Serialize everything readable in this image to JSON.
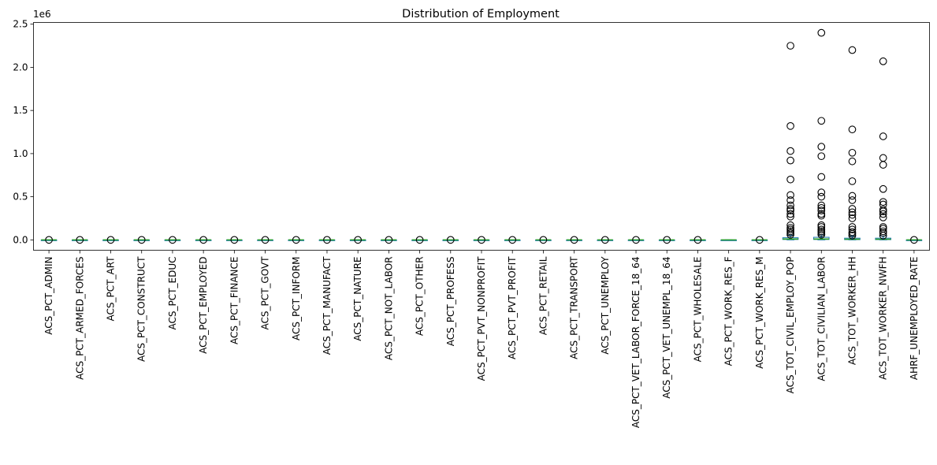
{
  "chart_data": {
    "type": "box",
    "title": "Distribution of Employment",
    "xlabel": "",
    "ylabel": "",
    "y_offset_label": "1e6",
    "y_scale_factor": 1000000,
    "ylim": [
      -0.12,
      2.52
    ],
    "yticks": [
      0.0,
      0.5,
      1.0,
      1.5,
      2.0,
      2.5
    ],
    "ytick_labels": [
      "0.0",
      "0.5",
      "1.0",
      "1.5",
      "2.0",
      "2.5"
    ],
    "grid": false,
    "colors": {
      "box": "#1f77b4",
      "median": "#2ca02c",
      "outlier": "#000000"
    },
    "categories": [
      "ACS_PCT_ADMIN",
      "ACS_PCT_ARMED_FORCES",
      "ACS_PCT_ART",
      "ACS_PCT_CONSTRUCT",
      "ACS_PCT_EDUC",
      "ACS_PCT_EMPLOYED",
      "ACS_PCT_FINANCE",
      "ACS_PCT_GOVT",
      "ACS_PCT_INFORM",
      "ACS_PCT_MANUFACT",
      "ACS_PCT_NATURE",
      "ACS_PCT_NOT_LABOR",
      "ACS_PCT_OTHER",
      "ACS_PCT_PROFESS",
      "ACS_PCT_PVT_NONPROFIT",
      "ACS_PCT_PVT_PROFIT",
      "ACS_PCT_RETAIL",
      "ACS_PCT_TRANSPORT",
      "ACS_PCT_UNEMPLOY",
      "ACS_PCT_VET_LABOR_FORCE_18_64",
      "ACS_PCT_VET_UNEMPL_18_64",
      "ACS_PCT_WHOLESALE",
      "ACS_PCT_WORK_RES_F",
      "ACS_PCT_WORK_RES_M",
      "ACS_TOT_CIVIL_EMPLOY_POP",
      "ACS_TOT_CIVILIAN_LABOR",
      "ACS_TOT_WORKER_HH",
      "ACS_TOT_WORKER_NWFH"
    ],
    "series": [
      {
        "q1": 0,
        "median": 0,
        "q3": 0,
        "whislo": 0,
        "whishi": 0,
        "fliers": [
          0
        ]
      },
      {
        "q1": 0,
        "median": 0,
        "q3": 0,
        "whislo": 0,
        "whishi": 0,
        "fliers": [
          0
        ]
      },
      {
        "q1": 0,
        "median": 0,
        "q3": 0,
        "whislo": 0,
        "whishi": 0,
        "fliers": [
          0
        ]
      },
      {
        "q1": 0,
        "median": 0,
        "q3": 0,
        "whislo": 0,
        "whishi": 0,
        "fliers": [
          0
        ]
      },
      {
        "q1": 0,
        "median": 0,
        "q3": 0,
        "whislo": 0,
        "whishi": 0,
        "fliers": [
          0
        ]
      },
      {
        "q1": 0,
        "median": 0,
        "q3": 0,
        "whislo": 0,
        "whishi": 0,
        "fliers": [
          0
        ]
      },
      {
        "q1": 0,
        "median": 0,
        "q3": 0,
        "whislo": 0,
        "whishi": 0,
        "fliers": [
          0
        ]
      },
      {
        "q1": 0,
        "median": 0,
        "q3": 0,
        "whislo": 0,
        "whishi": 0,
        "fliers": [
          0
        ]
      },
      {
        "q1": 0,
        "median": 0,
        "q3": 0,
        "whislo": 0,
        "whishi": 0,
        "fliers": [
          0
        ]
      },
      {
        "q1": 0,
        "median": 0,
        "q3": 0,
        "whislo": 0,
        "whishi": 0,
        "fliers": [
          0
        ]
      },
      {
        "q1": 0,
        "median": 0,
        "q3": 0,
        "whislo": 0,
        "whishi": 0,
        "fliers": [
          0
        ]
      },
      {
        "q1": 0,
        "median": 0,
        "q3": 0,
        "whislo": 0,
        "whishi": 0,
        "fliers": [
          0
        ]
      },
      {
        "q1": 0,
        "median": 0,
        "q3": 0,
        "whislo": 0,
        "whishi": 0,
        "fliers": [
          0
        ]
      },
      {
        "q1": 0,
        "median": 0,
        "q3": 0,
        "whislo": 0,
        "whishi": 0,
        "fliers": [
          0
        ]
      },
      {
        "q1": 0,
        "median": 0,
        "q3": 0,
        "whislo": 0,
        "whishi": 0,
        "fliers": [
          0
        ]
      },
      {
        "q1": 0,
        "median": 0,
        "q3": 0,
        "whislo": 0,
        "whishi": 0,
        "fliers": [
          0
        ]
      },
      {
        "q1": 0,
        "median": 0,
        "q3": 0,
        "whislo": 0,
        "whishi": 0,
        "fliers": [
          0
        ]
      },
      {
        "q1": 0,
        "median": 0,
        "q3": 0,
        "whislo": 0,
        "whishi": 0,
        "fliers": [
          0
        ]
      },
      {
        "q1": 0,
        "median": 0,
        "q3": 0,
        "whislo": 0,
        "whishi": 0,
        "fliers": [
          0
        ]
      },
      {
        "q1": 0,
        "median": 0,
        "q3": 0,
        "whislo": 0,
        "whishi": 0,
        "fliers": [
          0
        ]
      },
      {
        "q1": 0,
        "median": 0,
        "q3": 0,
        "whislo": 0,
        "whishi": 0,
        "fliers": [
          0
        ]
      },
      {
        "q1": 0,
        "median": 0,
        "q3": 0,
        "whislo": 0,
        "whishi": 0,
        "fliers": [
          0
        ]
      },
      {
        "q1": 0,
        "median": 0,
        "q3": 0,
        "whislo": 0,
        "whishi": 0,
        "fliers": []
      },
      {
        "q1": 0,
        "median": 0,
        "q3": 0,
        "whislo": 0,
        "whishi": 0,
        "fliers": [
          0
        ]
      },
      {
        "q1": 0.005,
        "median": 0.01,
        "q3": 0.025,
        "whislo": 0,
        "whishi": 0.055,
        "fliers": [
          2.25,
          1.32,
          1.03,
          0.92,
          0.7,
          0.52,
          0.46,
          0.4,
          0.36,
          0.34,
          0.3,
          0.27,
          0.17,
          0.14,
          0.12,
          0.1,
          0.08,
          0.06
        ]
      },
      {
        "q1": 0.005,
        "median": 0.01,
        "q3": 0.03,
        "whislo": 0,
        "whishi": 0.06,
        "fliers": [
          2.4,
          1.38,
          1.08,
          0.97,
          0.73,
          0.55,
          0.5,
          0.4,
          0.37,
          0.34,
          0.3,
          0.28,
          0.17,
          0.15,
          0.12,
          0.1,
          0.08,
          0.06
        ]
      },
      {
        "q1": 0.003,
        "median": 0.008,
        "q3": 0.02,
        "whislo": 0,
        "whishi": 0.045,
        "fliers": [
          2.2,
          1.28,
          1.01,
          0.91,
          0.68,
          0.51,
          0.46,
          0.36,
          0.32,
          0.29,
          0.25,
          0.15,
          0.12,
          0.09,
          0.07,
          0.05
        ]
      },
      {
        "q1": 0.003,
        "median": 0.008,
        "q3": 0.02,
        "whislo": 0,
        "whishi": 0.045,
        "fliers": [
          2.07,
          1.2,
          0.95,
          0.87,
          0.59,
          0.44,
          0.41,
          0.35,
          0.33,
          0.3,
          0.26,
          0.15,
          0.13,
          0.1,
          0.08,
          0.05
        ]
      },
      {
        "q1": 0,
        "median": 0,
        "q3": 0,
        "whislo": 0,
        "whishi": 0,
        "fliers": [
          0
        ]
      }
    ],
    "extra_category": "AHRF_UNEMPLOYED_RATE"
  }
}
